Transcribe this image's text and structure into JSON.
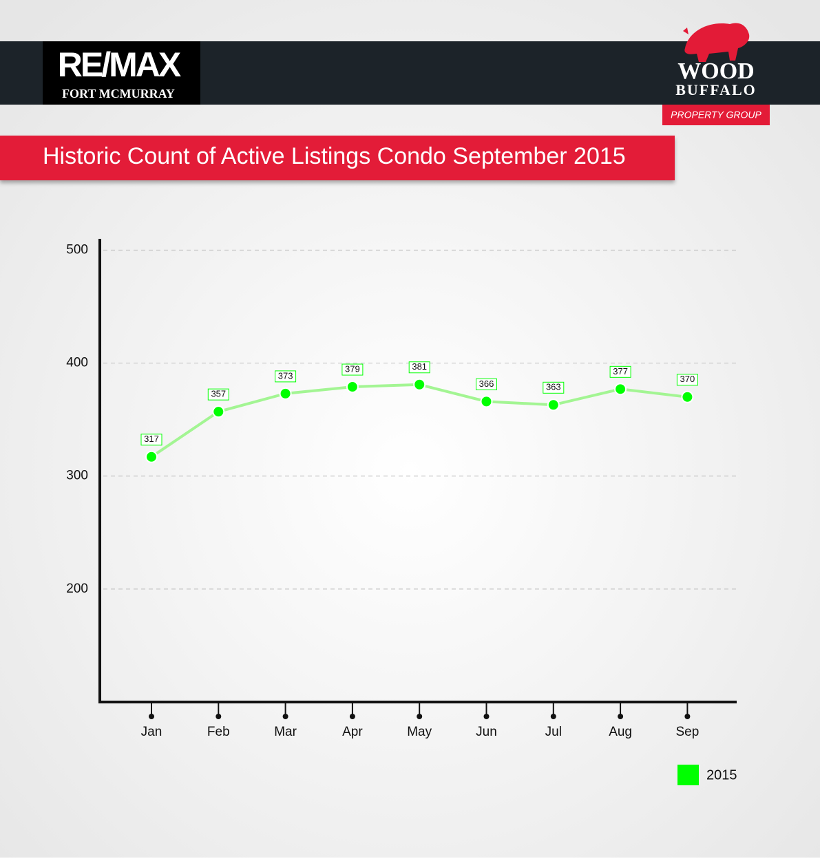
{
  "header": {
    "left_logo": "RE/MAX",
    "left_logo_sub": "FORT MCMURRAY",
    "right_logo_line1": "WOOD",
    "right_logo_line2": "BUFFALO",
    "right_logo_tag": "PROPERTY GROUP"
  },
  "chart_data": {
    "type": "line",
    "title": "Historic Count of Active Listings Condo September 2015",
    "categories": [
      "Jan",
      "Feb",
      "Mar",
      "Apr",
      "May",
      "Jun",
      "Jul",
      "Aug",
      "Sep"
    ],
    "series": [
      {
        "name": "2015",
        "color": "#00ff00",
        "values": [
          317,
          357,
          373,
          379,
          381,
          366,
          363,
          377,
          370
        ]
      }
    ],
    "ylim": [
      100,
      510
    ],
    "yticks": [
      200,
      300,
      400,
      500
    ],
    "grid": true,
    "legend": "bottom-right"
  }
}
